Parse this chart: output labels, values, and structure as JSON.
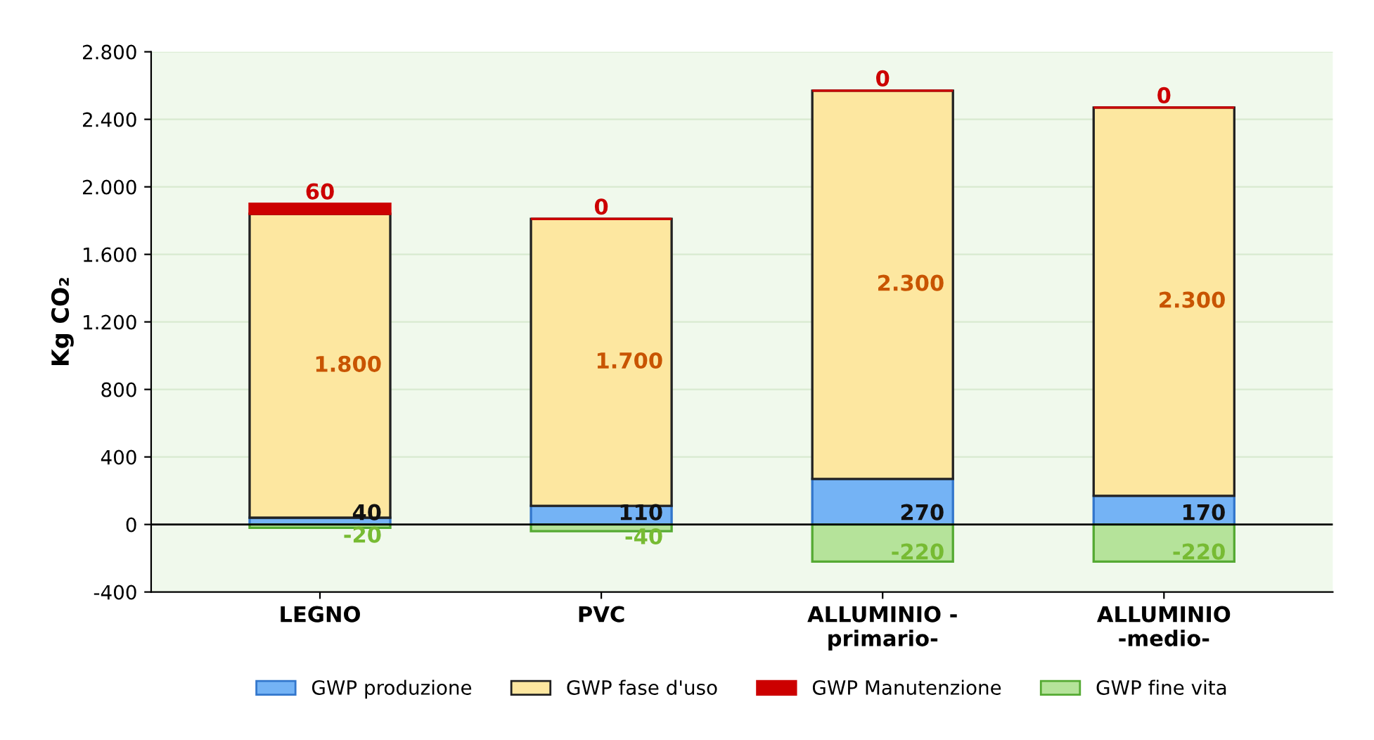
{
  "chart_data": {
    "type": "bar",
    "stacked": true,
    "ylabel": "Kg CO₂",
    "categories": [
      "LEGNO",
      "PVC",
      "ALLUMINIO -\nprimario-",
      "ALLUMINIO\n-medio-"
    ],
    "series": [
      {
        "name": "GWP produzione",
        "color": "#74b3f5",
        "values": [
          40,
          110,
          270,
          170
        ],
        "value_labels": [
          "40",
          "110",
          "270",
          "170"
        ]
      },
      {
        "name": "GWP fase d'uso",
        "color": "#fde7a0",
        "values": [
          1800,
          1700,
          2300,
          2300
        ],
        "value_labels": [
          "1.800",
          "1.700",
          "2.300",
          "2.300"
        ]
      },
      {
        "name": "GWP Manutenzione",
        "color": "#cc0000",
        "values": [
          60,
          0,
          0,
          0
        ],
        "value_labels": [
          "60",
          "0",
          "0",
          "0"
        ]
      },
      {
        "name": "GWP fine vita",
        "color": "#b5e39a",
        "values": [
          -20,
          -40,
          -220,
          -220
        ],
        "value_labels": [
          "-20",
          "-40",
          "-220",
          "-220"
        ]
      }
    ],
    "ylim": [
      -400,
      2800
    ],
    "yticks": [
      {
        "value": -400,
        "label": "-400"
      },
      0,
      400,
      800,
      {
        "value": 1200,
        "label": "1.200"
      },
      {
        "value": 1600,
        "label": "1.600"
      },
      {
        "value": 2000,
        "label": "2.000"
      },
      {
        "value": 2400,
        "label": "2.400"
      },
      {
        "value": 2800,
        "label": "2.800"
      }
    ],
    "legend": "bottom",
    "grid": "y"
  }
}
